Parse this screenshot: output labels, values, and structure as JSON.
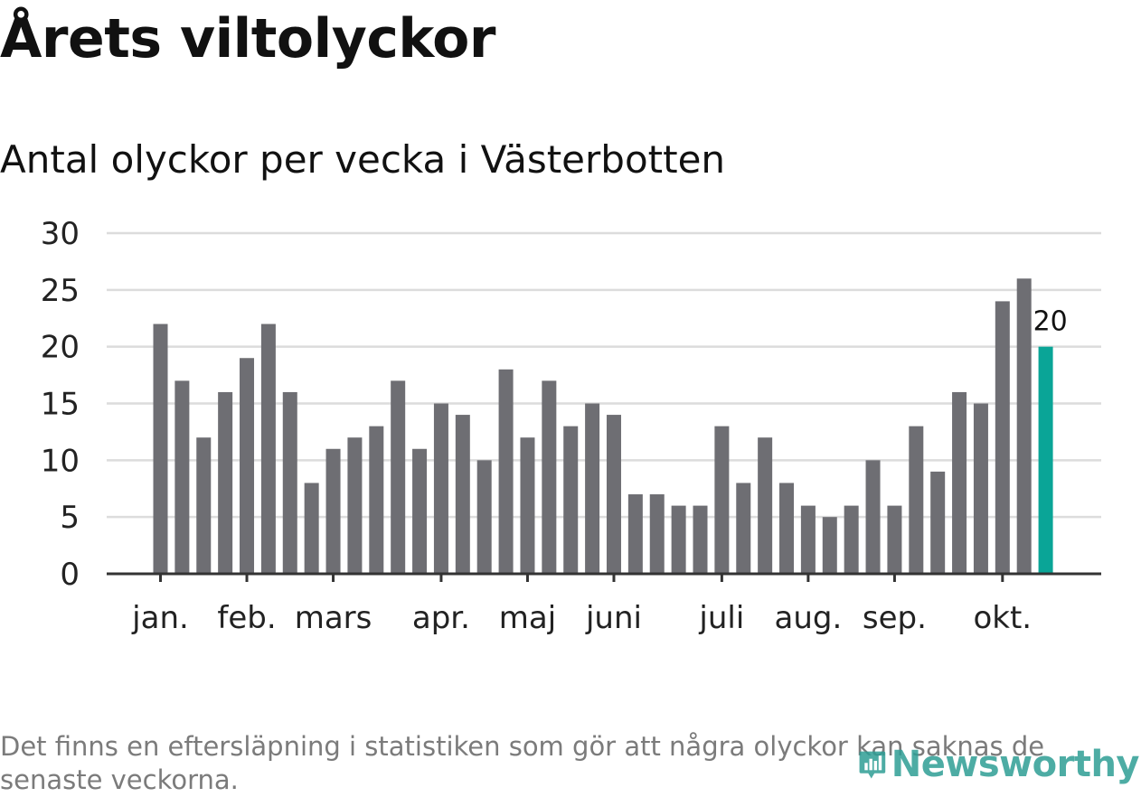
{
  "page": {
    "title": "Årets viltolyckor",
    "subtitle": "Antal olyckor per vecka i Västerbotten",
    "footnote": "Det finns en eftersläpning i statistiken som gör att några olyckor kan saknas de senaste veckorna.",
    "brand": "Newsworthy"
  },
  "colors": {
    "bar": "#6e6e73",
    "highlight": "#0aa597",
    "grid": "#dcdcdc",
    "axis": "#333333",
    "brand": "#2e9e95",
    "text": "#111111",
    "muted": "#7b7b7b"
  },
  "chart_data": {
    "type": "bar",
    "title": "Antal olyckor per vecka i Västerbotten",
    "xlabel": "",
    "ylabel": "",
    "ylim": [
      0,
      30
    ],
    "yticks": [
      0,
      5,
      10,
      15,
      20,
      25,
      30
    ],
    "grid": true,
    "values": [
      22,
      17,
      12,
      16,
      19,
      22,
      16,
      8,
      11,
      12,
      13,
      17,
      11,
      15,
      14,
      10,
      18,
      12,
      17,
      13,
      15,
      14,
      7,
      7,
      6,
      6,
      13,
      8,
      12,
      8,
      6,
      5,
      6,
      10,
      6,
      13,
      9,
      16,
      15,
      24,
      26,
      20
    ],
    "highlight_index": 41,
    "highlight_label": "20",
    "month_labels": [
      {
        "label": "jan.",
        "bar_index": 0
      },
      {
        "label": "feb.",
        "bar_index": 4
      },
      {
        "label": "mars",
        "bar_index": 8
      },
      {
        "label": "apr.",
        "bar_index": 13
      },
      {
        "label": "maj",
        "bar_index": 17
      },
      {
        "label": "juni",
        "bar_index": 21
      },
      {
        "label": "juli",
        "bar_index": 26
      },
      {
        "label": "aug.",
        "bar_index": 30
      },
      {
        "label": "sep.",
        "bar_index": 34
      },
      {
        "label": "okt.",
        "bar_index": 39
      }
    ]
  }
}
